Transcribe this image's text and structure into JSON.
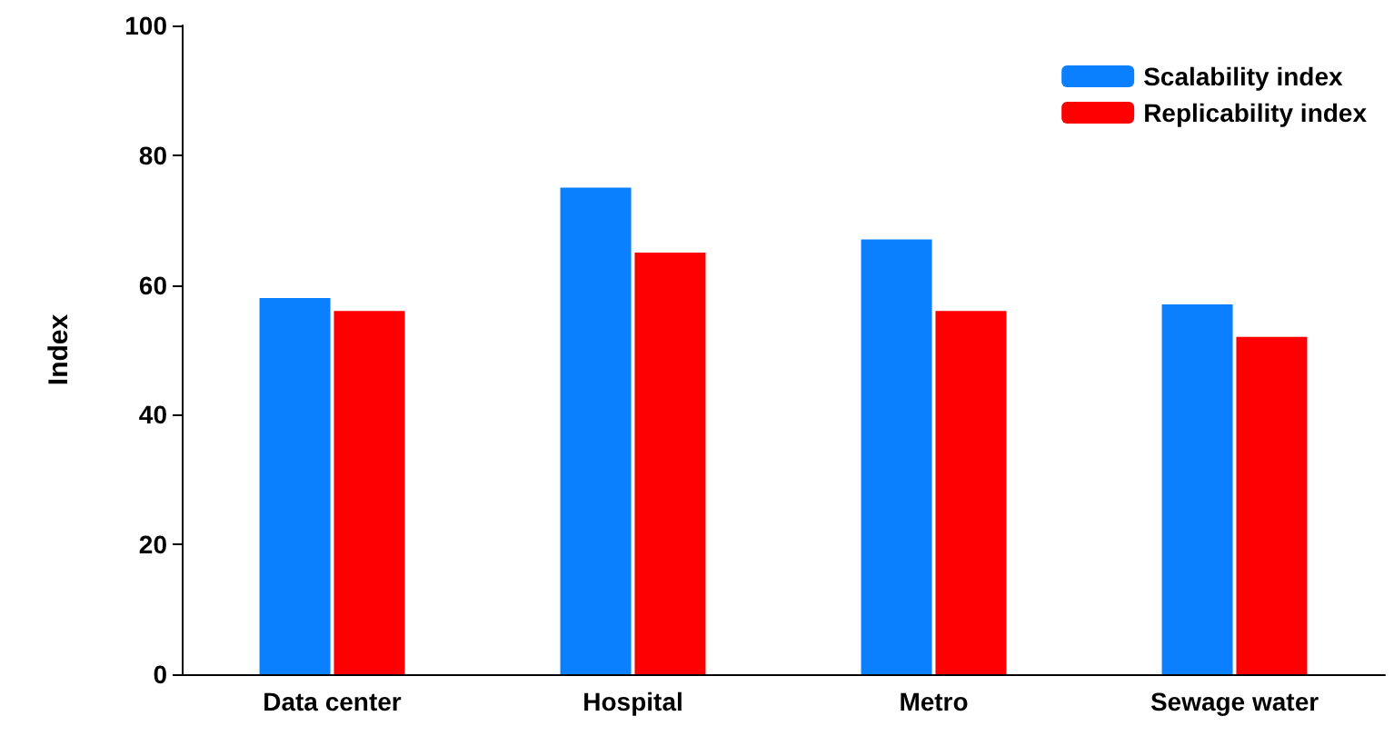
{
  "chart_data": {
    "type": "bar",
    "ylabel": "Index",
    "categories": [
      "Data center",
      "Hospital",
      "Metro",
      "Sewage water"
    ],
    "series": [
      {
        "name": "Scalability index",
        "color": "#0a80ff",
        "values": [
          58,
          75,
          67,
          57
        ]
      },
      {
        "name": "Replicability index",
        "color": "#ff0000",
        "values": [
          56,
          65,
          56,
          52
        ]
      }
    ],
    "ylim": [
      0,
      100
    ],
    "yticks": [
      0,
      20,
      40,
      60,
      80,
      100
    ],
    "grid": false,
    "legend": "top right"
  }
}
